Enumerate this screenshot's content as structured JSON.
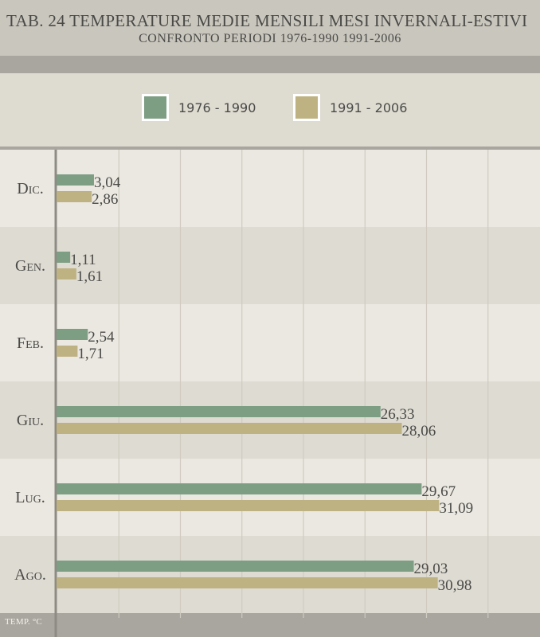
{
  "header": {
    "title": "TAB. 24  TEMPERATURE MEDIE MENSILI MESI INVERNALI-ESTIVI",
    "subtitle": "CONFRONTO PERIODI 1976-1990  1991-2006"
  },
  "legend": [
    {
      "label": "1976 - 1990",
      "color": "#7d9e83"
    },
    {
      "label": "1991 - 2006",
      "color": "#bfb282"
    }
  ],
  "footer": {
    "unit_label": "TEMP. °C"
  },
  "chart_data": {
    "type": "bar",
    "orientation": "horizontal",
    "title": "TAB. 24  TEMPERATURE MEDIE MENSILI MESI INVERNALI-ESTIVI",
    "subtitle": "CONFRONTO PERIODI 1976-1990  1991-2006",
    "xlabel": "TEMP. °C",
    "categories": [
      "Dic.",
      "Gen.",
      "Feb.",
      "Giu.",
      "Lug.",
      "Ago."
    ],
    "series": [
      {
        "name": "1976 - 1990",
        "color": "#7d9e83",
        "values": [
          3.04,
          1.11,
          2.54,
          26.33,
          29.67,
          29.03
        ],
        "labels": [
          "3,04",
          "1,11",
          "2,54",
          "26,33",
          "29,67",
          "29,03"
        ]
      },
      {
        "name": "1991 - 2006",
        "color": "#bfb282",
        "values": [
          2.86,
          1.61,
          1.71,
          28.06,
          31.09,
          30.98
        ],
        "labels": [
          "2,86",
          "1,61",
          "1,71",
          "28,06",
          "31,09",
          "30,98"
        ]
      }
    ],
    "xlim": [
      0,
      35
    ],
    "grid": true,
    "legend_position": "top"
  }
}
